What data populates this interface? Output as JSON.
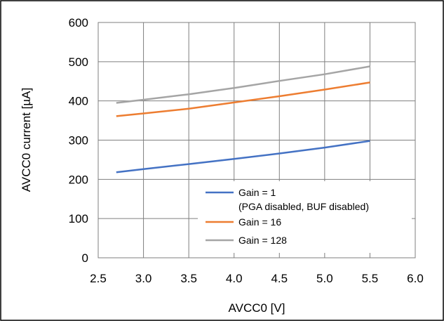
{
  "chart_data": {
    "type": "line",
    "title": "",
    "xlabel": "AVCC0 [V]",
    "ylabel": "AVCC0 current [µA]",
    "xlim": [
      2.5,
      6.0
    ],
    "ylim": [
      0,
      600
    ],
    "xticks": [
      "2.5",
      "3.0",
      "3.5",
      "4.0",
      "4.5",
      "5.0",
      "5.5",
      "6.0"
    ],
    "yticks": [
      "0",
      "100",
      "200",
      "300",
      "400",
      "500",
      "600"
    ],
    "grid": true,
    "legend_position": "bottom-right",
    "series": [
      {
        "name": "Gain = 1",
        "name_line2": "(PGA disabled, BUF disabled)",
        "color": "#4472C4",
        "x": [
          2.7,
          3.0,
          3.5,
          4.0,
          4.5,
          5.0,
          5.5
        ],
        "y": [
          218,
          226,
          239,
          252,
          266,
          281,
          298
        ]
      },
      {
        "name": "Gain = 16",
        "color": "#ED7D31",
        "x": [
          2.7,
          3.0,
          3.5,
          4.0,
          4.5,
          5.0,
          5.5
        ],
        "y": [
          361,
          368,
          380,
          396,
          412,
          429,
          447
        ]
      },
      {
        "name": "Gain = 128",
        "color": "#A5A5A5",
        "x": [
          2.7,
          3.0,
          3.5,
          4.0,
          4.5,
          5.0,
          5.5
        ],
        "y": [
          395,
          403,
          417,
          433,
          451,
          468,
          488
        ]
      }
    ]
  }
}
